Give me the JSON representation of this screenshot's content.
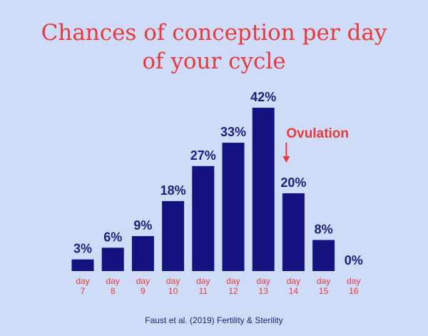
{
  "chart_data": {
    "type": "bar",
    "title_lines": [
      "Chances of conception per day",
      "of your cycle"
    ],
    "categories": [
      [
        "day",
        "7"
      ],
      [
        "day",
        "8"
      ],
      [
        "day",
        "9"
      ],
      [
        "day",
        "10"
      ],
      [
        "day",
        "11"
      ],
      [
        "day",
        "12"
      ],
      [
        "day",
        "13"
      ],
      [
        "day",
        "14"
      ],
      [
        "day",
        "15"
      ],
      [
        "day",
        "16"
      ]
    ],
    "values": [
      3,
      6,
      9,
      18,
      27,
      33,
      42,
      20,
      8,
      0
    ],
    "value_labels": [
      "3%",
      "6%",
      "9%",
      "18%",
      "27%",
      "33%",
      "42%",
      "20%",
      "8%",
      "0%"
    ],
    "ylim": [
      0,
      42
    ],
    "grid": false,
    "annotation": {
      "text": "Ovulation",
      "category_index": 7
    },
    "colors": {
      "bar": "#13127f",
      "label": "#1d1f7a",
      "accent": "#e8393d",
      "background": "#cfdcf7"
    }
  },
  "source": "Faust et al. (2019) Fertility & Sterility"
}
